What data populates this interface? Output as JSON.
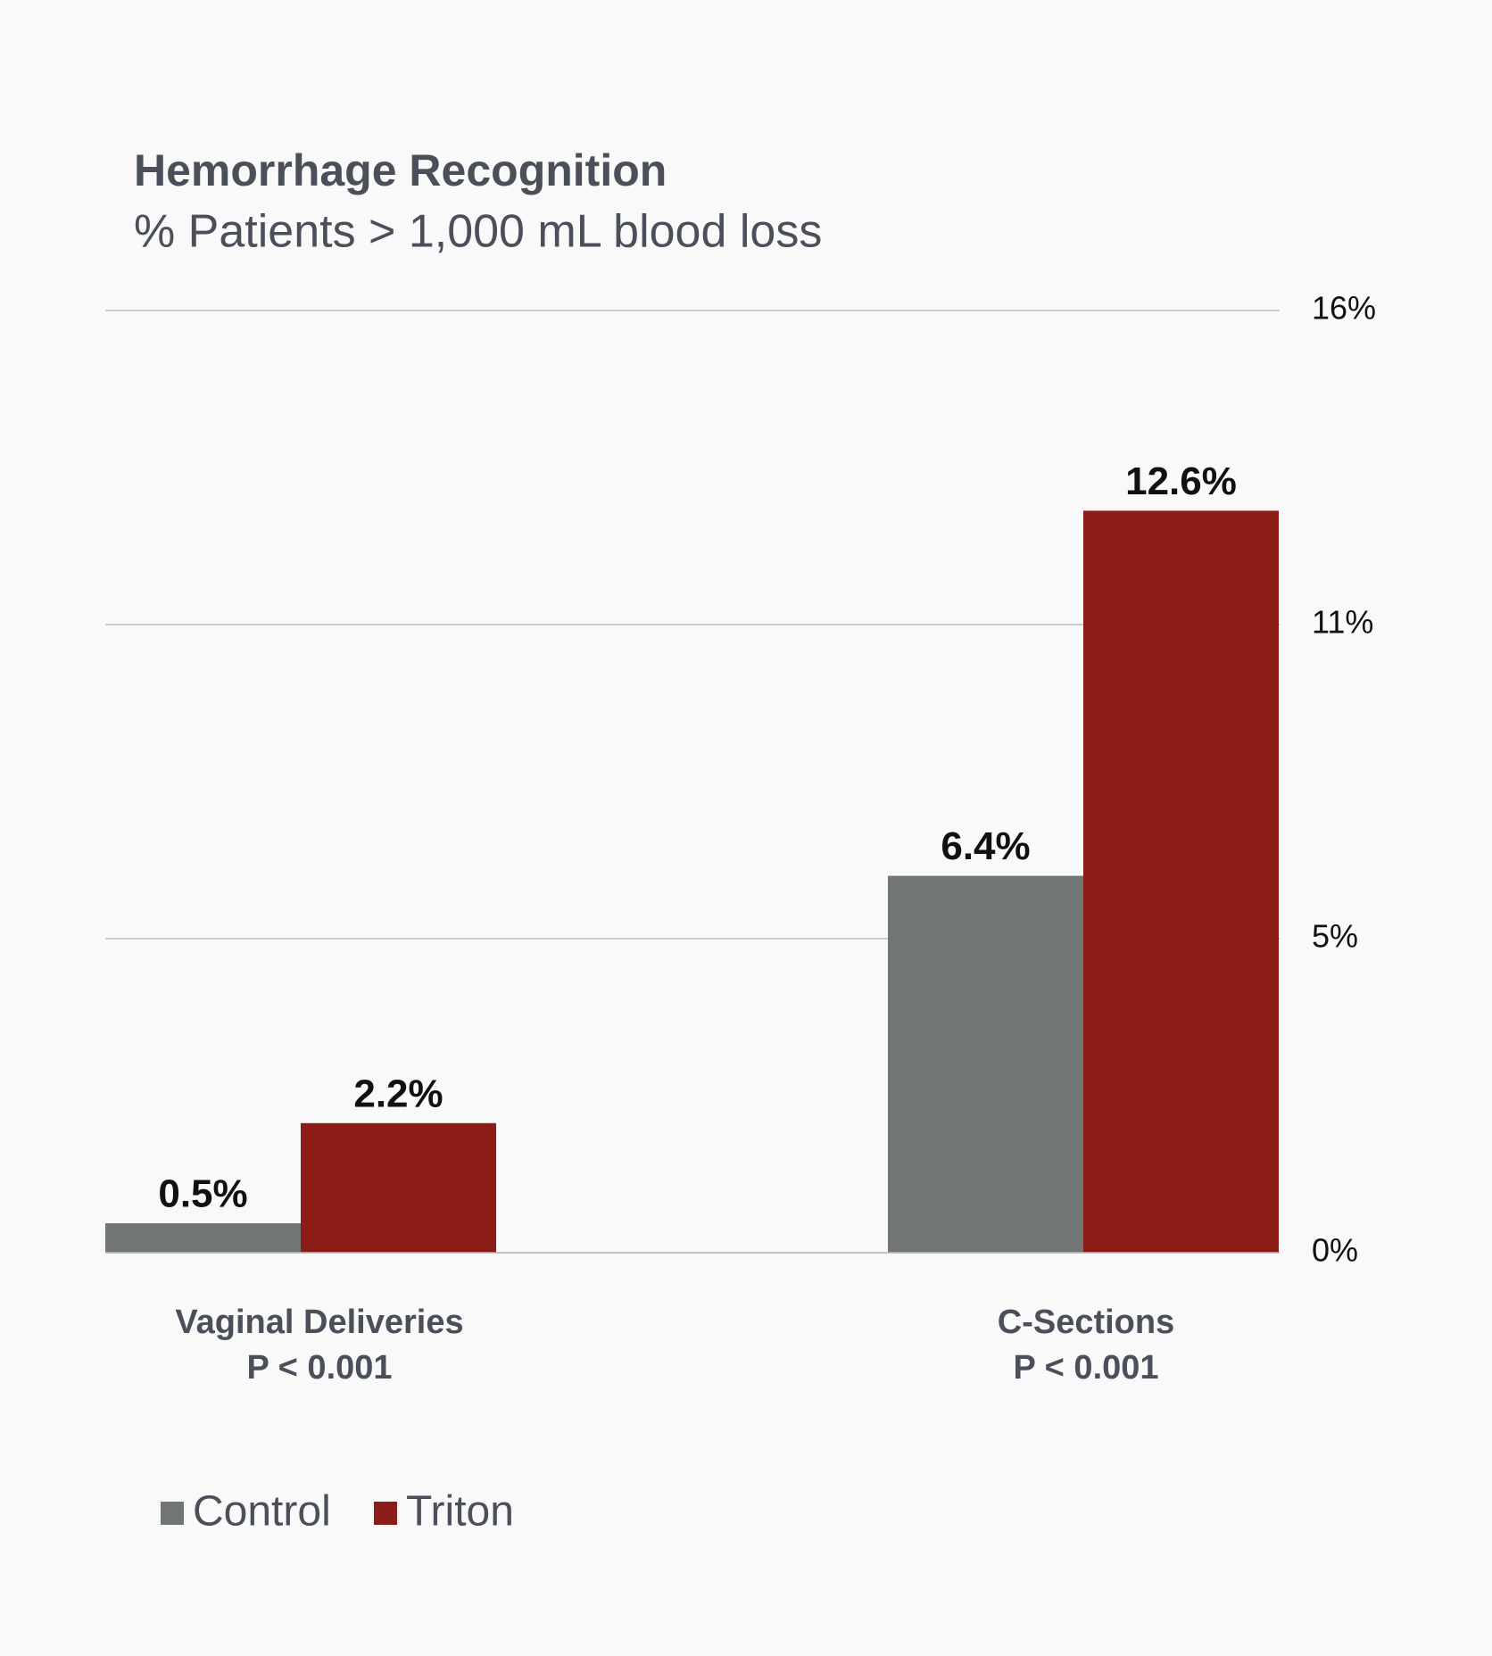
{
  "chart_data": {
    "type": "bar",
    "title": "Hemorrhage Recognition",
    "subtitle": "% Patients > 1,000 mL blood loss",
    "categories": [
      "Vaginal Deliveries",
      "C-Sections"
    ],
    "category_sublabels": [
      "P < 0.001",
      "P < 0.001"
    ],
    "series": [
      {
        "name": "Control",
        "color": "#717573",
        "values": [
          0.5,
          6.4
        ],
        "value_labels": [
          "0.5%",
          "6.4%"
        ]
      },
      {
        "name": "Triton",
        "color": "#8b1c16",
        "values": [
          2.2,
          12.6
        ],
        "value_labels": [
          "2.2%",
          "12.6%"
        ]
      }
    ],
    "ylim": [
      0,
      16
    ],
    "yticks": [
      {
        "value": 0,
        "label": "0%"
      },
      {
        "value": 5.333,
        "label": "5%"
      },
      {
        "value": 10.667,
        "label": "11%"
      },
      {
        "value": 16,
        "label": "16%"
      }
    ],
    "grid": true,
    "legend": "bottom-left"
  }
}
